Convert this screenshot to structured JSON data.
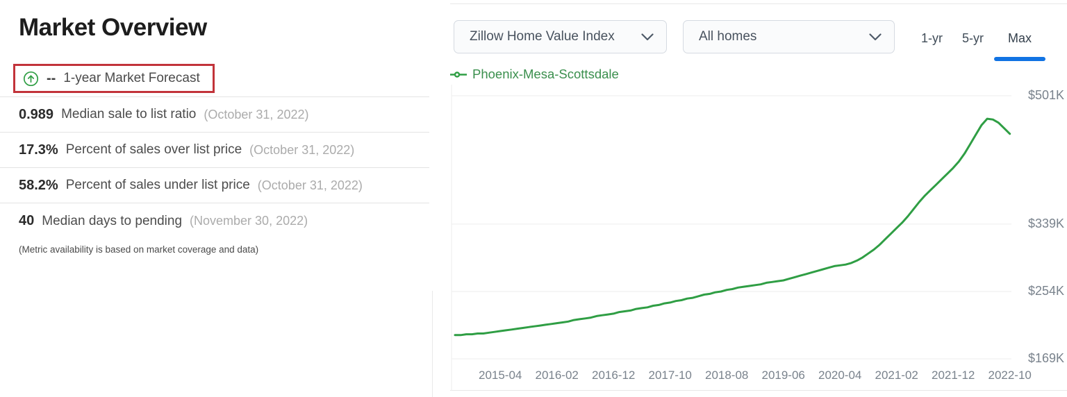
{
  "page": {
    "left_panel": {
      "title": "Market Overview",
      "forecast": {
        "icon": "circle-up-arrow-icon",
        "value": "--",
        "label": "1-year Market Forecast",
        "box_color": "#c2333a",
        "icon_color": "#2f9e44"
      },
      "metrics": [
        {
          "value": "0.989",
          "label": "Median sale to list ratio",
          "date": "(October 31, 2022)"
        },
        {
          "value": "17.3%",
          "label": "Percent of sales over list price",
          "date": "(October 31, 2022)"
        },
        {
          "value": "58.2%",
          "label": "Percent of sales under list price",
          "date": "(October 31, 2022)"
        },
        {
          "value": "40",
          "label": "Median days to pending",
          "date": "(November 30, 2022)"
        }
      ],
      "note": "(Metric availability is based on market coverage and data)"
    },
    "chart_panel": {
      "metric_dropdown": {
        "value": "Zillow Home Value Index"
      },
      "home_type_dropdown": {
        "value": "All homes"
      },
      "range_tabs": [
        {
          "label": "1-yr",
          "active": false
        },
        {
          "label": "5-yr",
          "active": false
        },
        {
          "label": "Max",
          "active": true
        }
      ],
      "active_tab_color": "#1173e3",
      "legend": {
        "label": "Phoenix-Mesa-Scottsdale",
        "color": "#3a8f4d"
      }
    }
  },
  "chart_data": {
    "type": "line",
    "title": "",
    "xlabel": "",
    "ylabel": "",
    "grid": true,
    "legend_position": "top-left",
    "ylim": [
      169,
      501
    ],
    "y_ticks": [
      {
        "label": "$501K",
        "value": 501
      },
      {
        "label": "$339K",
        "value": 339
      },
      {
        "label": "$254K",
        "value": 254
      },
      {
        "label": "$169K",
        "value": 169
      }
    ],
    "x_ticks": [
      {
        "label": "2015-04",
        "month_index": 8
      },
      {
        "label": "2016-02",
        "month_index": 18
      },
      {
        "label": "2016-12",
        "month_index": 28
      },
      {
        "label": "2017-10",
        "month_index": 38
      },
      {
        "label": "2018-08",
        "month_index": 48
      },
      {
        "label": "2019-06",
        "month_index": 58
      },
      {
        "label": "2020-04",
        "month_index": 68
      },
      {
        "label": "2021-02",
        "month_index": 78
      },
      {
        "label": "2021-12",
        "month_index": 88
      },
      {
        "label": "2022-10",
        "month_index": 98
      }
    ],
    "series": [
      {
        "name": "Phoenix-Mesa-Scottsdale",
        "color": "#2f9e44",
        "unit": "USD thousands",
        "x_start": "2014-08",
        "x_end": "2022-10",
        "x_interval": "monthly",
        "values": [
          199,
          199,
          200,
          200,
          201,
          201,
          202,
          203,
          204,
          205,
          206,
          207,
          208,
          209,
          210,
          211,
          212,
          213,
          214,
          215,
          216,
          218,
          219,
          220,
          221,
          223,
          224,
          225,
          226,
          228,
          229,
          230,
          232,
          233,
          234,
          236,
          237,
          239,
          240,
          242,
          243,
          245,
          246,
          248,
          250,
          251,
          253,
          254,
          256,
          257,
          259,
          260,
          261,
          262,
          263,
          265,
          266,
          267,
          268,
          270,
          272,
          274,
          276,
          278,
          280,
          282,
          284,
          286,
          287,
          288,
          290,
          293,
          297,
          302,
          307,
          313,
          320,
          327,
          334,
          341,
          349,
          358,
          367,
          375,
          382,
          389,
          396,
          403,
          410,
          418,
          428,
          440,
          452,
          464,
          472,
          471,
          467,
          460,
          453
        ]
      }
    ]
  }
}
